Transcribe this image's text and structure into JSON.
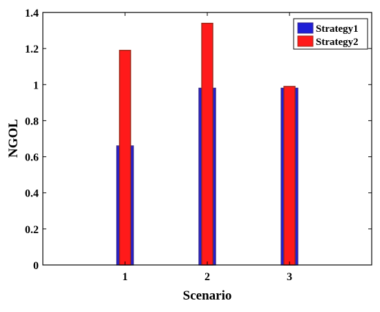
{
  "chart_data": {
    "type": "bar",
    "categories": [
      "1",
      "2",
      "3"
    ],
    "series": [
      {
        "name": "Strategy1",
        "values": [
          0.66,
          0.98,
          0.98
        ],
        "color": "#1f1fd6",
        "edge": "#3a2a8a"
      },
      {
        "name": "Strategy2",
        "values": [
          1.19,
          1.34,
          0.99
        ],
        "color": "#ff1a1a",
        "edge": "#9a2a1a"
      }
    ],
    "xlabel": "Scenario",
    "ylabel": "NGOL",
    "ylim": [
      0,
      1.4
    ],
    "yticks": [
      0,
      0.2,
      0.4,
      0.6,
      0.8,
      1,
      1.2,
      1.4
    ],
    "ytick_labels": [
      "0",
      "0.2",
      "0.4",
      "0.6",
      "0.8",
      "1",
      "1.2",
      "1.4"
    ],
    "xtick_labels": [
      "1",
      "2",
      "3"
    ],
    "grid": false,
    "legend_position": "top-right",
    "bars_overlaid": true
  }
}
